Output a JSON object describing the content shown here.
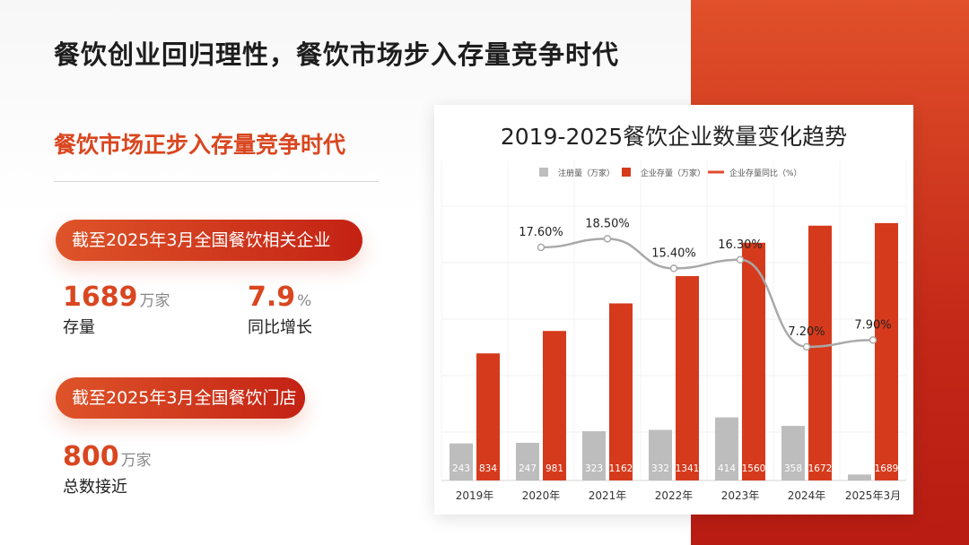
{
  "page": {
    "title": "餐饮创业回归理性，餐饮市场步入存量竞争时代",
    "subtitle": "餐饮市场正步入存量竞争时代"
  },
  "section1": {
    "pill": "截至2025年3月全国餐饮相关企业",
    "stat1": {
      "value": "1689",
      "unit": "万家",
      "label": "存量"
    },
    "stat2": {
      "value": "7.9",
      "unit": "%",
      "label": "同比增长"
    }
  },
  "section2": {
    "pill": "截至2025年3月全国餐饮门店",
    "stat1": {
      "value": "800",
      "unit": "万家",
      "label": "总数接近"
    }
  },
  "colors": {
    "accent": "#d9461f",
    "bar_gray": "#bdbdbd",
    "bar_red": "#d63a1c",
    "line": "#a9a9a9"
  },
  "chart_data": {
    "type": "bar",
    "title": "2019-2025餐饮企业数量变化趋势",
    "categories": [
      "2019年",
      "2020年",
      "2021年",
      "2022年",
      "2023年",
      "2024年",
      "2025年3月"
    ],
    "series": [
      {
        "name": "注册量（万家）",
        "type": "bar",
        "values": [
          243,
          247,
          323,
          332,
          414,
          358,
          39
        ]
      },
      {
        "name": "企业存量（万家）",
        "type": "bar",
        "values": [
          834,
          981,
          1162,
          1341,
          1560,
          1672,
          1689
        ]
      },
      {
        "name": "企业存量同比（%）",
        "type": "line",
        "values": [
          null,
          17.6,
          18.5,
          15.4,
          16.3,
          7.2,
          7.9
        ],
        "labels": [
          "",
          "17.60%",
          "18.50%",
          "15.40%",
          "16.30%",
          "7.20%",
          "7.90%"
        ]
      }
    ],
    "legend": "top",
    "grid": true,
    "ylim": [
      0,
      1800
    ],
    "y2lim": [
      -5,
      25
    ]
  }
}
